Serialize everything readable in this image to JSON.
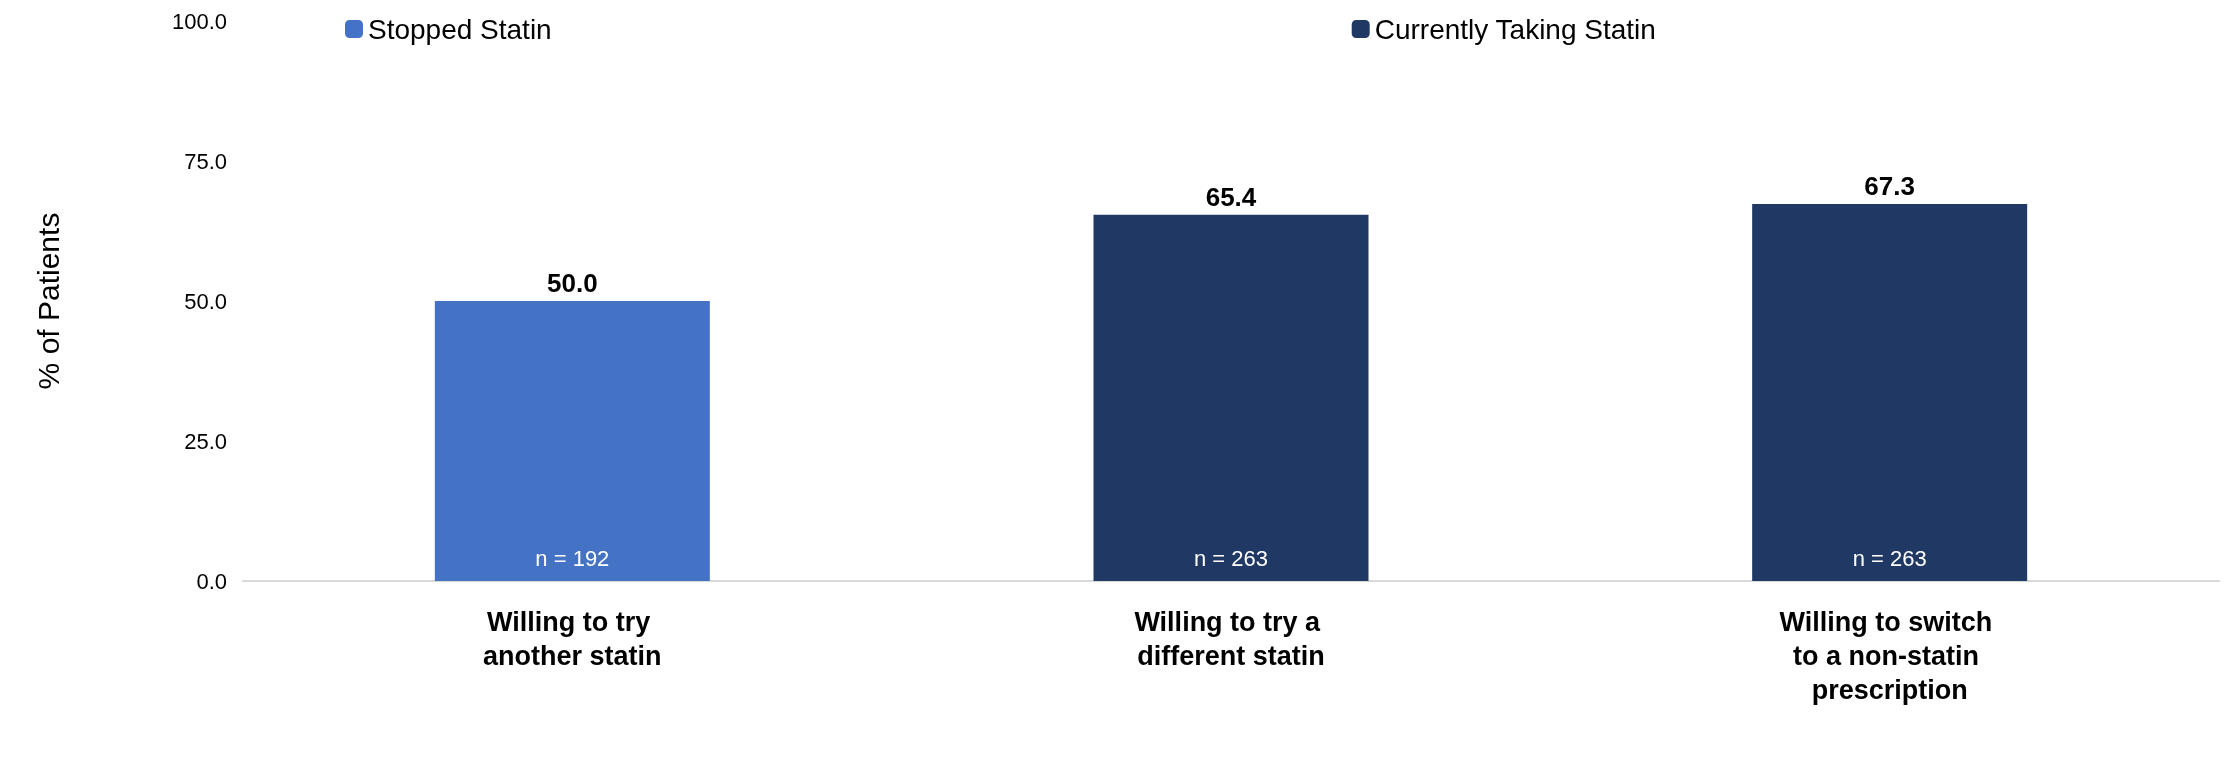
{
  "chart_data": {
    "type": "bar",
    "ylabel": "% of Patients",
    "categories": [
      "Willing to try another statin",
      "Willing to try a different statin",
      "Willing to switch to a non-statin prescription"
    ],
    "series": [
      {
        "name": "Stopped Statin",
        "color": "#4472c4",
        "values": [
          50.0,
          null,
          null
        ],
        "value_labels": [
          "50.0",
          null,
          null
        ]
      },
      {
        "name": "Currently Taking Statin",
        "color": "#203864",
        "values": [
          null,
          65.4,
          67.3
        ],
        "value_labels": [
          null,
          "65.4",
          "67.3"
        ]
      }
    ],
    "ylim": [
      0,
      100
    ],
    "yticks": [
      {
        "value": 0,
        "label": "0.0"
      },
      {
        "value": 25,
        "label": "25.0"
      },
      {
        "value": 50,
        "label": "50.0"
      },
      {
        "value": 75,
        "label": "75.0"
      },
      {
        "value": 100,
        "label": "100.0"
      }
    ],
    "grid": false,
    "legend": "top",
    "annotations": [
      "n = 192",
      "n = 263",
      "n = 263"
    ]
  }
}
